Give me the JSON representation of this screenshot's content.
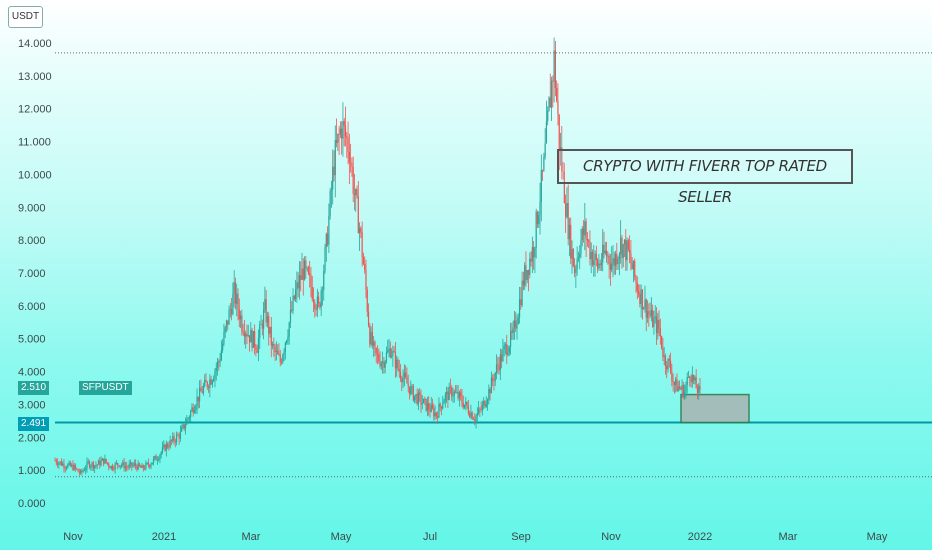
{
  "chart_data": {
    "type": "candlestick",
    "symbol": "SFPUSDT",
    "unit": "USDT",
    "ylim": [
      0,
      14.6
    ],
    "yticks": [
      "14.000",
      "13.000",
      "12.000",
      "11.000",
      "10.000",
      "9.000",
      "8.000",
      "7.000",
      "6.000",
      "5.000",
      "4.000",
      "3.000",
      "2.000",
      "1.000",
      "0.000"
    ],
    "yvalues": [
      14,
      13,
      12,
      11,
      10,
      9,
      8,
      7,
      6,
      5,
      4,
      3,
      2,
      1,
      0
    ],
    "xticks": [
      "Nov",
      "2021",
      "Mar",
      "May",
      "Jul",
      "Sep",
      "Nov",
      "2022",
      "Mar",
      "May"
    ],
    "annotation": "CRYPTO WITH FIVERR TOP RATED SELLER",
    "price_tags": {
      "current": "2.510",
      "support": "2.491"
    },
    "lines": {
      "support": 2.45,
      "ath": 13.7,
      "low": 0.8
    },
    "zone": {
      "from": 2.45,
      "to": 3.3
    },
    "path": [
      [
        0,
        1.3
      ],
      [
        8,
        1.15
      ],
      [
        14,
        1.1
      ],
      [
        20,
        0.9
      ],
      [
        26,
        1.2
      ],
      [
        32,
        1.15
      ],
      [
        38,
        1.3
      ],
      [
        44,
        1.1
      ],
      [
        50,
        1.2
      ],
      [
        56,
        1.1
      ],
      [
        62,
        1.15
      ],
      [
        68,
        1.05
      ],
      [
        74,
        1.2
      ],
      [
        80,
        1.4
      ],
      [
        86,
        1.7
      ],
      [
        92,
        1.9
      ],
      [
        98,
        2.1
      ],
      [
        104,
        2.6
      ],
      [
        110,
        3.1
      ],
      [
        116,
        3.5
      ],
      [
        122,
        3.8
      ],
      [
        128,
        4.3
      ],
      [
        134,
        5.4
      ],
      [
        140,
        6.4
      ],
      [
        146,
        5.5
      ],
      [
        152,
        5.1
      ],
      [
        158,
        4.8
      ],
      [
        164,
        5.9
      ],
      [
        170,
        4.7
      ],
      [
        176,
        4.3
      ],
      [
        182,
        5.3
      ],
      [
        188,
        6.4
      ],
      [
        194,
        7.1
      ],
      [
        200,
        6.6
      ],
      [
        206,
        5.9
      ],
      [
        212,
        7.8
      ],
      [
        218,
        10.4
      ],
      [
        224,
        11.5
      ],
      [
        230,
        10.8
      ],
      [
        234,
        9.4
      ],
      [
        238,
        8.4
      ],
      [
        242,
        6.9
      ],
      [
        246,
        5.1
      ],
      [
        250,
        4.5
      ],
      [
        256,
        4.3
      ],
      [
        262,
        4.7
      ],
      [
        268,
        4.1
      ],
      [
        274,
        3.7
      ],
      [
        280,
        3.3
      ],
      [
        286,
        3.1
      ],
      [
        292,
        2.9
      ],
      [
        298,
        2.7
      ],
      [
        304,
        3.2
      ],
      [
        310,
        3.4
      ],
      [
        316,
        3.2
      ],
      [
        322,
        2.9
      ],
      [
        328,
        2.6
      ],
      [
        334,
        2.9
      ],
      [
        340,
        3.5
      ],
      [
        346,
        4.2
      ],
      [
        352,
        4.7
      ],
      [
        358,
        5.1
      ],
      [
        362,
        5.9
      ],
      [
        366,
        6.8
      ],
      [
        370,
        7.3
      ],
      [
        374,
        7.8
      ],
      [
        378,
        9.1
      ],
      [
        382,
        10.2
      ],
      [
        386,
        12.0
      ],
      [
        390,
        13.5
      ],
      [
        394,
        11.0
      ],
      [
        398,
        9.5
      ],
      [
        402,
        8.1
      ],
      [
        406,
        7.1
      ],
      [
        410,
        7.9
      ],
      [
        414,
        8.3
      ],
      [
        418,
        7.7
      ],
      [
        424,
        7.2
      ],
      [
        430,
        7.6
      ],
      [
        436,
        7.3
      ],
      [
        442,
        7.9
      ],
      [
        448,
        7.6
      ],
      [
        454,
        6.7
      ],
      [
        460,
        6.1
      ],
      [
        466,
        5.6
      ],
      [
        472,
        5.3
      ],
      [
        476,
        4.4
      ],
      [
        480,
        4.2
      ],
      [
        484,
        3.6
      ],
      [
        488,
        3.5
      ],
      [
        492,
        3.4
      ],
      [
        496,
        4.0
      ],
      [
        500,
        3.6
      ],
      [
        504,
        3.3
      ]
    ]
  }
}
